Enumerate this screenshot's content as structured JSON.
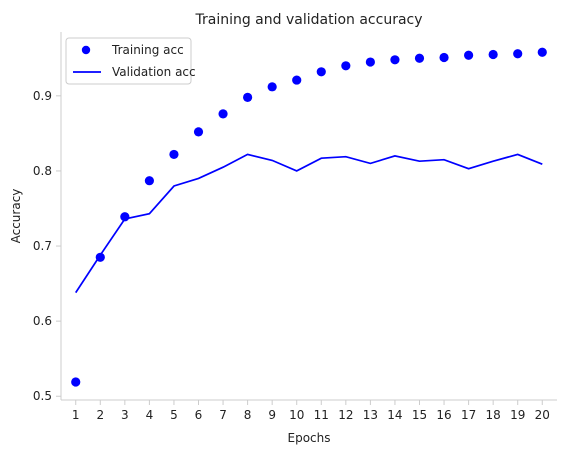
{
  "chart_data": {
    "type": "line",
    "title": "Training and validation accuracy",
    "xlabel": "Epochs",
    "ylabel": "Accuracy",
    "x": [
      1,
      2,
      3,
      4,
      5,
      6,
      7,
      8,
      9,
      10,
      11,
      12,
      13,
      14,
      15,
      16,
      17,
      18,
      19,
      20
    ],
    "xlim": [
      0.4,
      20.6
    ],
    "ylim": [
      0.495,
      0.985
    ],
    "yticks": [
      0.5,
      0.6,
      0.7,
      0.8,
      0.9
    ],
    "grid": false,
    "legend_position": "top-left",
    "series": [
      {
        "name": "Training acc",
        "style": "scatter",
        "color": "#0000ff",
        "values": [
          0.519,
          0.685,
          0.739,
          0.787,
          0.822,
          0.852,
          0.876,
          0.898,
          0.912,
          0.921,
          0.932,
          0.94,
          0.945,
          0.948,
          0.95,
          0.951,
          0.954,
          0.955,
          0.956,
          0.958
        ]
      },
      {
        "name": "Validation acc",
        "style": "line",
        "color": "#0000ff",
        "values": [
          0.638,
          0.688,
          0.736,
          0.743,
          0.78,
          0.79,
          0.805,
          0.822,
          0.814,
          0.8,
          0.817,
          0.819,
          0.81,
          0.82,
          0.813,
          0.815,
          0.803,
          0.813,
          0.822,
          0.809
        ]
      }
    ]
  }
}
